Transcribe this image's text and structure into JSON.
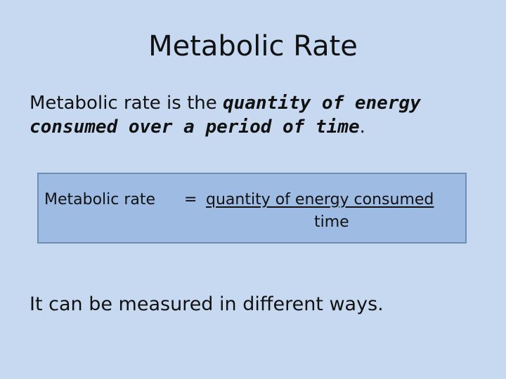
{
  "slide": {
    "title": "Metabolic Rate",
    "definition": {
      "intro": "Metabolic rate is the ",
      "emphasis": "quantity of energy consumed over a period of time",
      "end": "."
    },
    "formula": {
      "lhs": "Metabolic rate",
      "equals": "=",
      "numerator": "quantity of energy consumed",
      "denominator": "time"
    },
    "closing": "It can be measured in different ways."
  },
  "colors": {
    "background": "#c6d9f0",
    "formula_box": "#9dbbe3",
    "formula_border": "#6c8fb3"
  }
}
